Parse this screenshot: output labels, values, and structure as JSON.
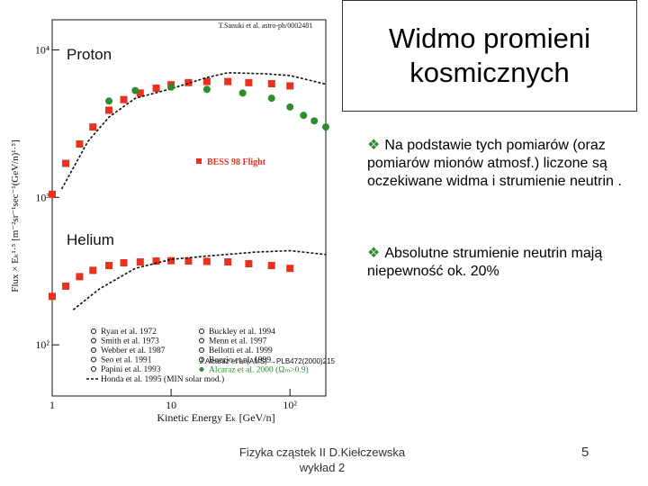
{
  "slide": {
    "title": "Widmo promieni kosmicznych",
    "bullets": [
      "Na podstawie tych pomiarów (oraz pomiarów mionów atmosf.) liczone są oczekiwane widma i strumienie neutrin .",
      "Absolutne strumienie neutrin mają niepewność ok. 20%"
    ],
    "bullet_symbol": "❖",
    "footer": "Fizyka cząstek II D.Kiełczewska wykład 2",
    "page_number": "5"
  },
  "chart_data": {
    "type": "scatter",
    "source": "T.Sanuki et al. astro-ph/0002481",
    "y_label": "Flux × Eₖ¹·⁵ [m⁻²sr⁻¹sec⁻¹(GeV/n)¹·⁵]",
    "x_label": "Kinetic Energy  Eₖ [GeV/n]",
    "xlim": [
      1,
      200
    ],
    "ylim": [
      45,
      16000
    ],
    "log_x": true,
    "log_y": true,
    "xticks": [
      1,
      10,
      {
        "value": 100,
        "label": "10²"
      }
    ],
    "yticks": [
      {
        "value": 100,
        "label": "10²"
      },
      {
        "value": 1000,
        "label": "10³"
      },
      {
        "value": 10000,
        "label": "10⁴"
      }
    ],
    "groups": [
      {
        "label": "Proton",
        "series": [
          {
            "name": "BESS 98 Flight",
            "color": "#e8321e",
            "marker": "square",
            "x": [
              1,
              1.3,
              1.7,
              2.2,
              3,
              4,
              5.5,
              7.5,
              10,
              14,
              20,
              30,
              45,
              70,
              100
            ],
            "values": [
              1050,
              1700,
              2300,
              3000,
              3900,
              4600,
              5100,
              5500,
              5800,
              6000,
              6100,
              6100,
              6000,
              5900,
              5700
            ]
          },
          {
            "name": "Honda et al. 1995 (MIN solar mod.)",
            "color": "#111111",
            "marker": "line",
            "x": [
              1.2,
              2,
              3,
              5,
              10,
              20,
              30,
              60,
              100,
              200
            ],
            "values": [
              1140,
              2400,
              3500,
              4700,
              5450,
              6500,
              7000,
              6900,
              6700,
              5850
            ]
          },
          {
            "name": "Alcaraz et al. 2000 (Ωₘ>0.9)",
            "color": "#2e8b2e",
            "marker": "circle",
            "x": [
              3,
              5,
              10,
              20,
              40,
              70,
              100,
              130,
              160,
              200
            ],
            "values": [
              4500,
              5300,
              5600,
              5400,
              5100,
              4700,
              4100,
              3600,
              3300,
              3000
            ]
          }
        ]
      },
      {
        "label": "Helium",
        "series": [
          {
            "color": "#e8321e",
            "marker": "square",
            "x": [
              1,
              1.3,
              1.7,
              2.2,
              3,
              4,
              5.5,
              7.5,
              10,
              14,
              20,
              30,
              45,
              70,
              100
            ],
            "values": [
              213,
              250,
              290,
              320,
              345,
              360,
              365,
              370,
              372,
              370,
              368,
              365,
              355,
              345,
              330
            ]
          },
          {
            "color": "#111111",
            "marker": "line",
            "x": [
              1.5,
              2.5,
              5,
              10,
              20,
              50,
              100,
              200
            ],
            "values": [
              173,
              240,
              330,
              380,
              400,
              425,
              435,
              410
            ]
          }
        ]
      }
    ],
    "legend_entries": [
      "Ryan et al. 1972",
      "Smith et al. 1973",
      "Webber et al. 1987",
      "Seo et al. 1991",
      "Papini et al. 1993",
      "Buckley et al. 1994",
      "Menn et al. 1997",
      "Bellotti et al. 1999",
      "Boezio et al. 1999"
    ],
    "annotation": "J.Alcaraz et al.(AMS) →PLB472(2000)215"
  }
}
